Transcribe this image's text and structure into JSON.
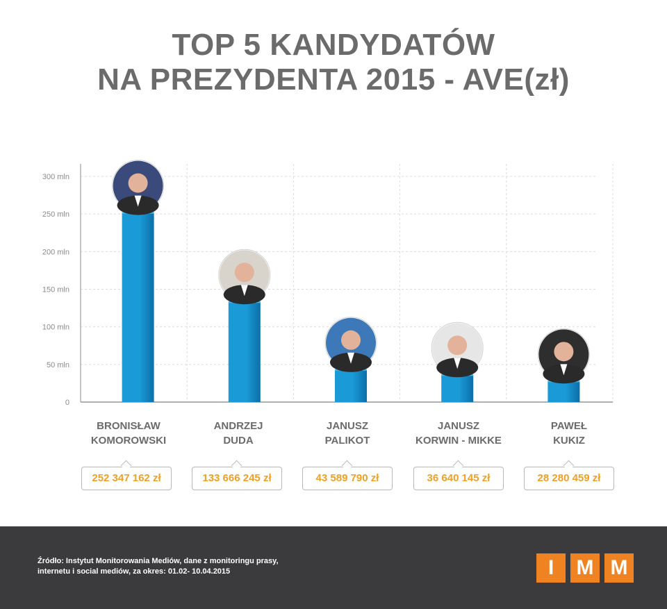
{
  "title": {
    "line1": "TOP 5 KANDYDATÓW",
    "line2": "NA PREZYDENTA 2015 - AVE(zł)"
  },
  "colors": {
    "bar": "#1a9bd8",
    "bar_dark": "#0c6fa8",
    "value_text": "#f0a024",
    "footer_bg": "#3b3b3d",
    "logo": "#ef8321"
  },
  "chart_data": {
    "type": "bar",
    "categories": [
      "BRONISŁAW KOMOROWSKI",
      "ANDRZEJ DUDA",
      "JANUSZ PALIKOT",
      "JANUSZ KORWIN - MIKKE",
      "PAWEŁ KUKIZ"
    ],
    "values": [
      252347162,
      133666245,
      43589790,
      36640145,
      28280459
    ],
    "ylim": [
      0,
      300000000
    ],
    "yticks": [
      0,
      50000000,
      100000000,
      150000000,
      200000000,
      250000000,
      300000000
    ],
    "ytick_labels": [
      "0",
      "50 mln",
      "100 mln",
      "150 mln",
      "200 mln",
      "250 mln",
      "300 mln"
    ],
    "grid": true
  },
  "candidates": [
    {
      "name_line1": "BRONISŁAW",
      "name_line2": "KOMOROWSKI",
      "value_label": "252 347 162 zł",
      "photo_icon": "portrait-photo"
    },
    {
      "name_line1": "ANDRZEJ",
      "name_line2": "DUDA",
      "value_label": "133 666 245 zł",
      "photo_icon": "portrait-photo"
    },
    {
      "name_line1": "JANUSZ",
      "name_line2": "PALIKOT",
      "value_label": "43 589 790 zł",
      "photo_icon": "portrait-photo"
    },
    {
      "name_line1": "JANUSZ",
      "name_line2": "KORWIN - MIKKE",
      "value_label": "36 640 145 zł",
      "photo_icon": "portrait-photo"
    },
    {
      "name_line1": "PAWEŁ",
      "name_line2": "KUKIZ",
      "value_label": "28 280 459 zł",
      "photo_icon": "portrait-photo"
    }
  ],
  "footer": {
    "source_line1": "Źródło: Instytut Monitorowania Mediów, dane z monitoringu prasy,",
    "source_line2": "internetu i social mediów, za okres: 01.02- 10.04.2015",
    "logo_letters": [
      "I",
      "M",
      "M"
    ]
  }
}
